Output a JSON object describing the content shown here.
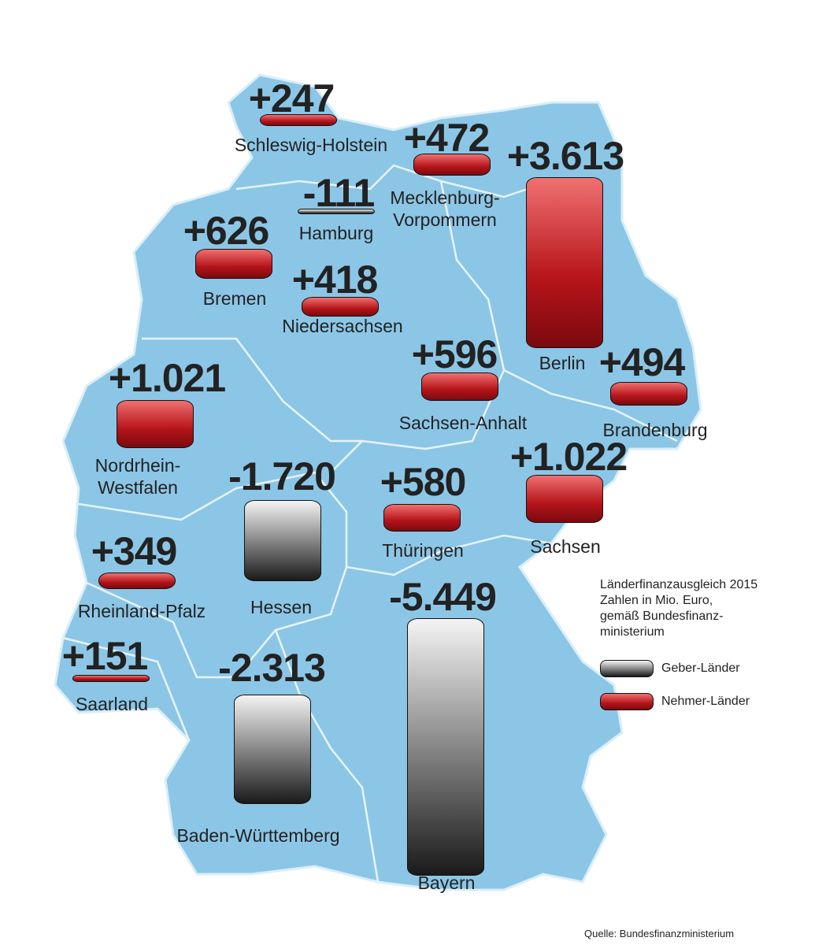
{
  "chart_data": {
    "type": "map-bars",
    "categories": [
      "Schleswig-Holstein",
      "Hamburg",
      "Mecklenburg-\nVorpommern",
      "Bremen",
      "Niedersachsen",
      "Berlin",
      "Brandenburg",
      "Sachsen-Anhalt",
      "Nordrhein-\nWestfalen",
      "Sachsen",
      "Thüringen",
      "Hessen",
      "Rheinland-Pfalz",
      "Saarland",
      "Baden-Württemberg",
      "Bayern"
    ],
    "values": [
      247,
      -111,
      472,
      626,
      418,
      3613,
      494,
      596,
      1021,
      1022,
      580,
      -1720,
      349,
      151,
      -2313,
      -5449
    ],
    "value_labels": [
      "+247",
      "-111",
      "+472",
      "+626",
      "+418",
      "+3.613",
      "+494",
      "+596",
      "+1.021",
      "+1.022",
      "+580",
      "-1.720",
      "+349",
      "+151",
      "-2.313",
      "-5.449"
    ],
    "note_lines": [
      "Länderfinanzausgleich 2015",
      "Zahlen in Mio. Euro,",
      "gemäß Bundesfinanz-",
      "ministerium"
    ],
    "legend": [
      {
        "label": "Geber-Länder",
        "color": "#1a1a1a"
      },
      {
        "label": "Nehmer-Länder",
        "color": "#b5141a"
      }
    ],
    "source": "Quelle: Bundesfinanzministerium"
  }
}
